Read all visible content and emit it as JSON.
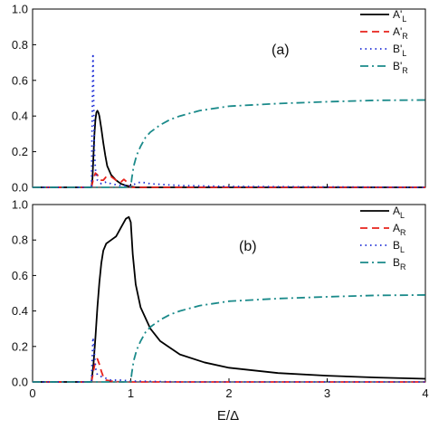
{
  "chart_data": [
    {
      "type": "line",
      "panel_label": "(a)",
      "xlim": [
        0,
        4
      ],
      "ylim": [
        0,
        1.0
      ],
      "yticks": [
        "0.0",
        "0.2",
        "0.4",
        "0.6",
        "0.8",
        "1.0"
      ],
      "xticks": [],
      "legend": "top-right",
      "series": [
        {
          "name": "A'",
          "sub": "L",
          "color": "#000000",
          "dash": "solid",
          "x": [
            0,
            0.6,
            0.61,
            0.62,
            0.63,
            0.64,
            0.65,
            0.66,
            0.67,
            0.68,
            0.7,
            0.72,
            0.74,
            0.76,
            0.8,
            0.85,
            0.9,
            0.95,
            1.0,
            1.05,
            4.0
          ],
          "y": [
            0,
            0,
            0.05,
            0.18,
            0.3,
            0.38,
            0.42,
            0.43,
            0.42,
            0.4,
            0.33,
            0.25,
            0.18,
            0.12,
            0.07,
            0.04,
            0.02,
            0.01,
            0.005,
            0,
            0
          ]
        },
        {
          "name": "A'",
          "sub": "R",
          "color": "#e8231c",
          "dash": "dash",
          "x": [
            0,
            0.6,
            0.62,
            0.64,
            0.66,
            0.68,
            0.7,
            0.72,
            0.75,
            0.8,
            0.85,
            0.9,
            0.93,
            0.96,
            1.0,
            1.05,
            4.0
          ],
          "y": [
            0,
            0,
            0.05,
            0.08,
            0.07,
            0.05,
            0.04,
            0.04,
            0.06,
            0.06,
            0.04,
            0.03,
            0.045,
            0.03,
            0.0,
            0.0,
            0
          ]
        },
        {
          "name": "B'",
          "sub": "L",
          "color": "#1f2fd6",
          "dash": "dot",
          "x": [
            0,
            0.6,
            0.605,
            0.615,
            0.62,
            0.625,
            0.63,
            0.64,
            0.66,
            0.7,
            0.75,
            0.8,
            0.9,
            1.0,
            1.1,
            1.2,
            1.5,
            2.0,
            4.0
          ],
          "y": [
            0,
            0,
            0.3,
            0.75,
            0.6,
            0.35,
            0.2,
            0.1,
            0.04,
            0.02,
            0.03,
            0.02,
            0.01,
            0.01,
            0.03,
            0.02,
            0.01,
            0.005,
            0
          ]
        },
        {
          "name": "B'",
          "sub": "R",
          "color": "#1a8a8a",
          "dash": "dashdot",
          "x": [
            0,
            1.0,
            1.01,
            1.03,
            1.06,
            1.1,
            1.15,
            1.2,
            1.3,
            1.4,
            1.5,
            1.7,
            2.0,
            2.5,
            3.0,
            3.5,
            4.0
          ],
          "y": [
            0,
            0,
            0.05,
            0.12,
            0.18,
            0.23,
            0.28,
            0.31,
            0.35,
            0.38,
            0.4,
            0.43,
            0.455,
            0.47,
            0.48,
            0.488,
            0.49
          ]
        }
      ]
    },
    {
      "type": "line",
      "panel_label": "(b)",
      "xlim": [
        0,
        4
      ],
      "ylim": [
        0,
        1.0
      ],
      "yticks": [
        "0.0",
        "0.2",
        "0.4",
        "0.6",
        "0.8",
        "1.0"
      ],
      "xticks": [
        "0",
        "1",
        "2",
        "3",
        "4"
      ],
      "xlabel": "E/Δ",
      "legend": "top-right",
      "series": [
        {
          "name": "A",
          "sub": "L",
          "color": "#000000",
          "dash": "solid",
          "x": [
            0,
            0.6,
            0.62,
            0.64,
            0.66,
            0.68,
            0.7,
            0.72,
            0.75,
            0.8,
            0.85,
            0.9,
            0.95,
            0.98,
            1.0,
            1.02,
            1.05,
            1.1,
            1.2,
            1.3,
            1.5,
            1.75,
            2.0,
            2.5,
            3.0,
            3.5,
            4.0
          ],
          "y": [
            0,
            0,
            0.1,
            0.25,
            0.42,
            0.56,
            0.67,
            0.74,
            0.78,
            0.8,
            0.82,
            0.87,
            0.92,
            0.93,
            0.9,
            0.72,
            0.55,
            0.42,
            0.3,
            0.23,
            0.155,
            0.11,
            0.08,
            0.05,
            0.035,
            0.025,
            0.018
          ]
        },
        {
          "name": "A",
          "sub": "R",
          "color": "#e8231c",
          "dash": "dash",
          "x": [
            0,
            0.6,
            0.62,
            0.64,
            0.66,
            0.68,
            0.7,
            0.72,
            0.75,
            0.8,
            0.9,
            1.0,
            4.0
          ],
          "y": [
            0,
            0,
            0.06,
            0.12,
            0.13,
            0.1,
            0.06,
            0.03,
            0.01,
            0.005,
            0.0,
            0.0,
            0
          ]
        },
        {
          "name": "B",
          "sub": "L",
          "color": "#1f2fd6",
          "dash": "dot",
          "x": [
            0,
            0.6,
            0.605,
            0.615,
            0.625,
            0.635,
            0.645,
            0.66,
            0.7,
            0.75,
            0.8,
            0.9,
            1.0,
            1.5,
            4.0
          ],
          "y": [
            0,
            0,
            0.1,
            0.25,
            0.2,
            0.12,
            0.07,
            0.04,
            0.03,
            0.02,
            0.01,
            0.01,
            0.005,
            0.0,
            0
          ]
        },
        {
          "name": "B",
          "sub": "R",
          "color": "#1a8a8a",
          "dash": "dashdot",
          "x": [
            0,
            1.0,
            1.01,
            1.03,
            1.06,
            1.1,
            1.15,
            1.2,
            1.3,
            1.4,
            1.5,
            1.7,
            2.0,
            2.5,
            3.0,
            3.5,
            4.0
          ],
          "y": [
            0,
            0,
            0.05,
            0.12,
            0.18,
            0.23,
            0.28,
            0.31,
            0.35,
            0.38,
            0.4,
            0.43,
            0.455,
            0.47,
            0.48,
            0.488,
            0.49
          ]
        }
      ]
    }
  ]
}
